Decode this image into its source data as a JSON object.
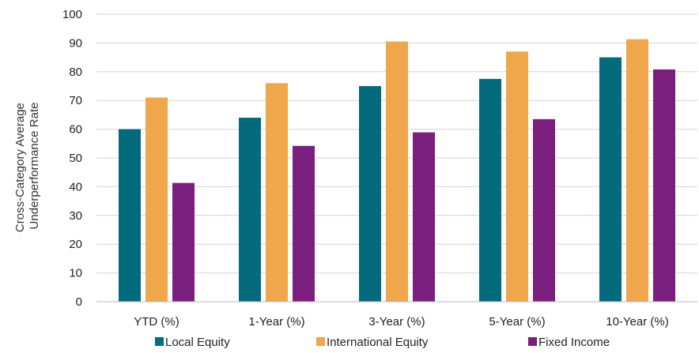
{
  "chart_data": {
    "type": "bar",
    "categories": [
      "YTD (%)",
      "1-Year (%)",
      "3-Year (%)",
      "5-Year (%)",
      "10-Year (%)"
    ],
    "series": [
      {
        "name": "Local Equity",
        "color": "#046B7C",
        "values": [
          60,
          64,
          75,
          77.5,
          85
        ]
      },
      {
        "name": "International Equity",
        "color": "#F0A64A",
        "values": [
          71,
          76,
          90.5,
          87,
          91.3
        ]
      },
      {
        "name": "Fixed Income",
        "color": "#7B1F7E",
        "values": [
          41.3,
          54.2,
          58.9,
          63.5,
          80.8
        ]
      }
    ],
    "ylabel_lines": [
      "Cross-Category Average",
      "Underperformance Rate"
    ],
    "ylim": [
      0,
      100
    ],
    "yticks": [
      0,
      10,
      20,
      30,
      40,
      50,
      60,
      70,
      80,
      90,
      100
    ],
    "grid": true,
    "legend_position": "bottom"
  }
}
